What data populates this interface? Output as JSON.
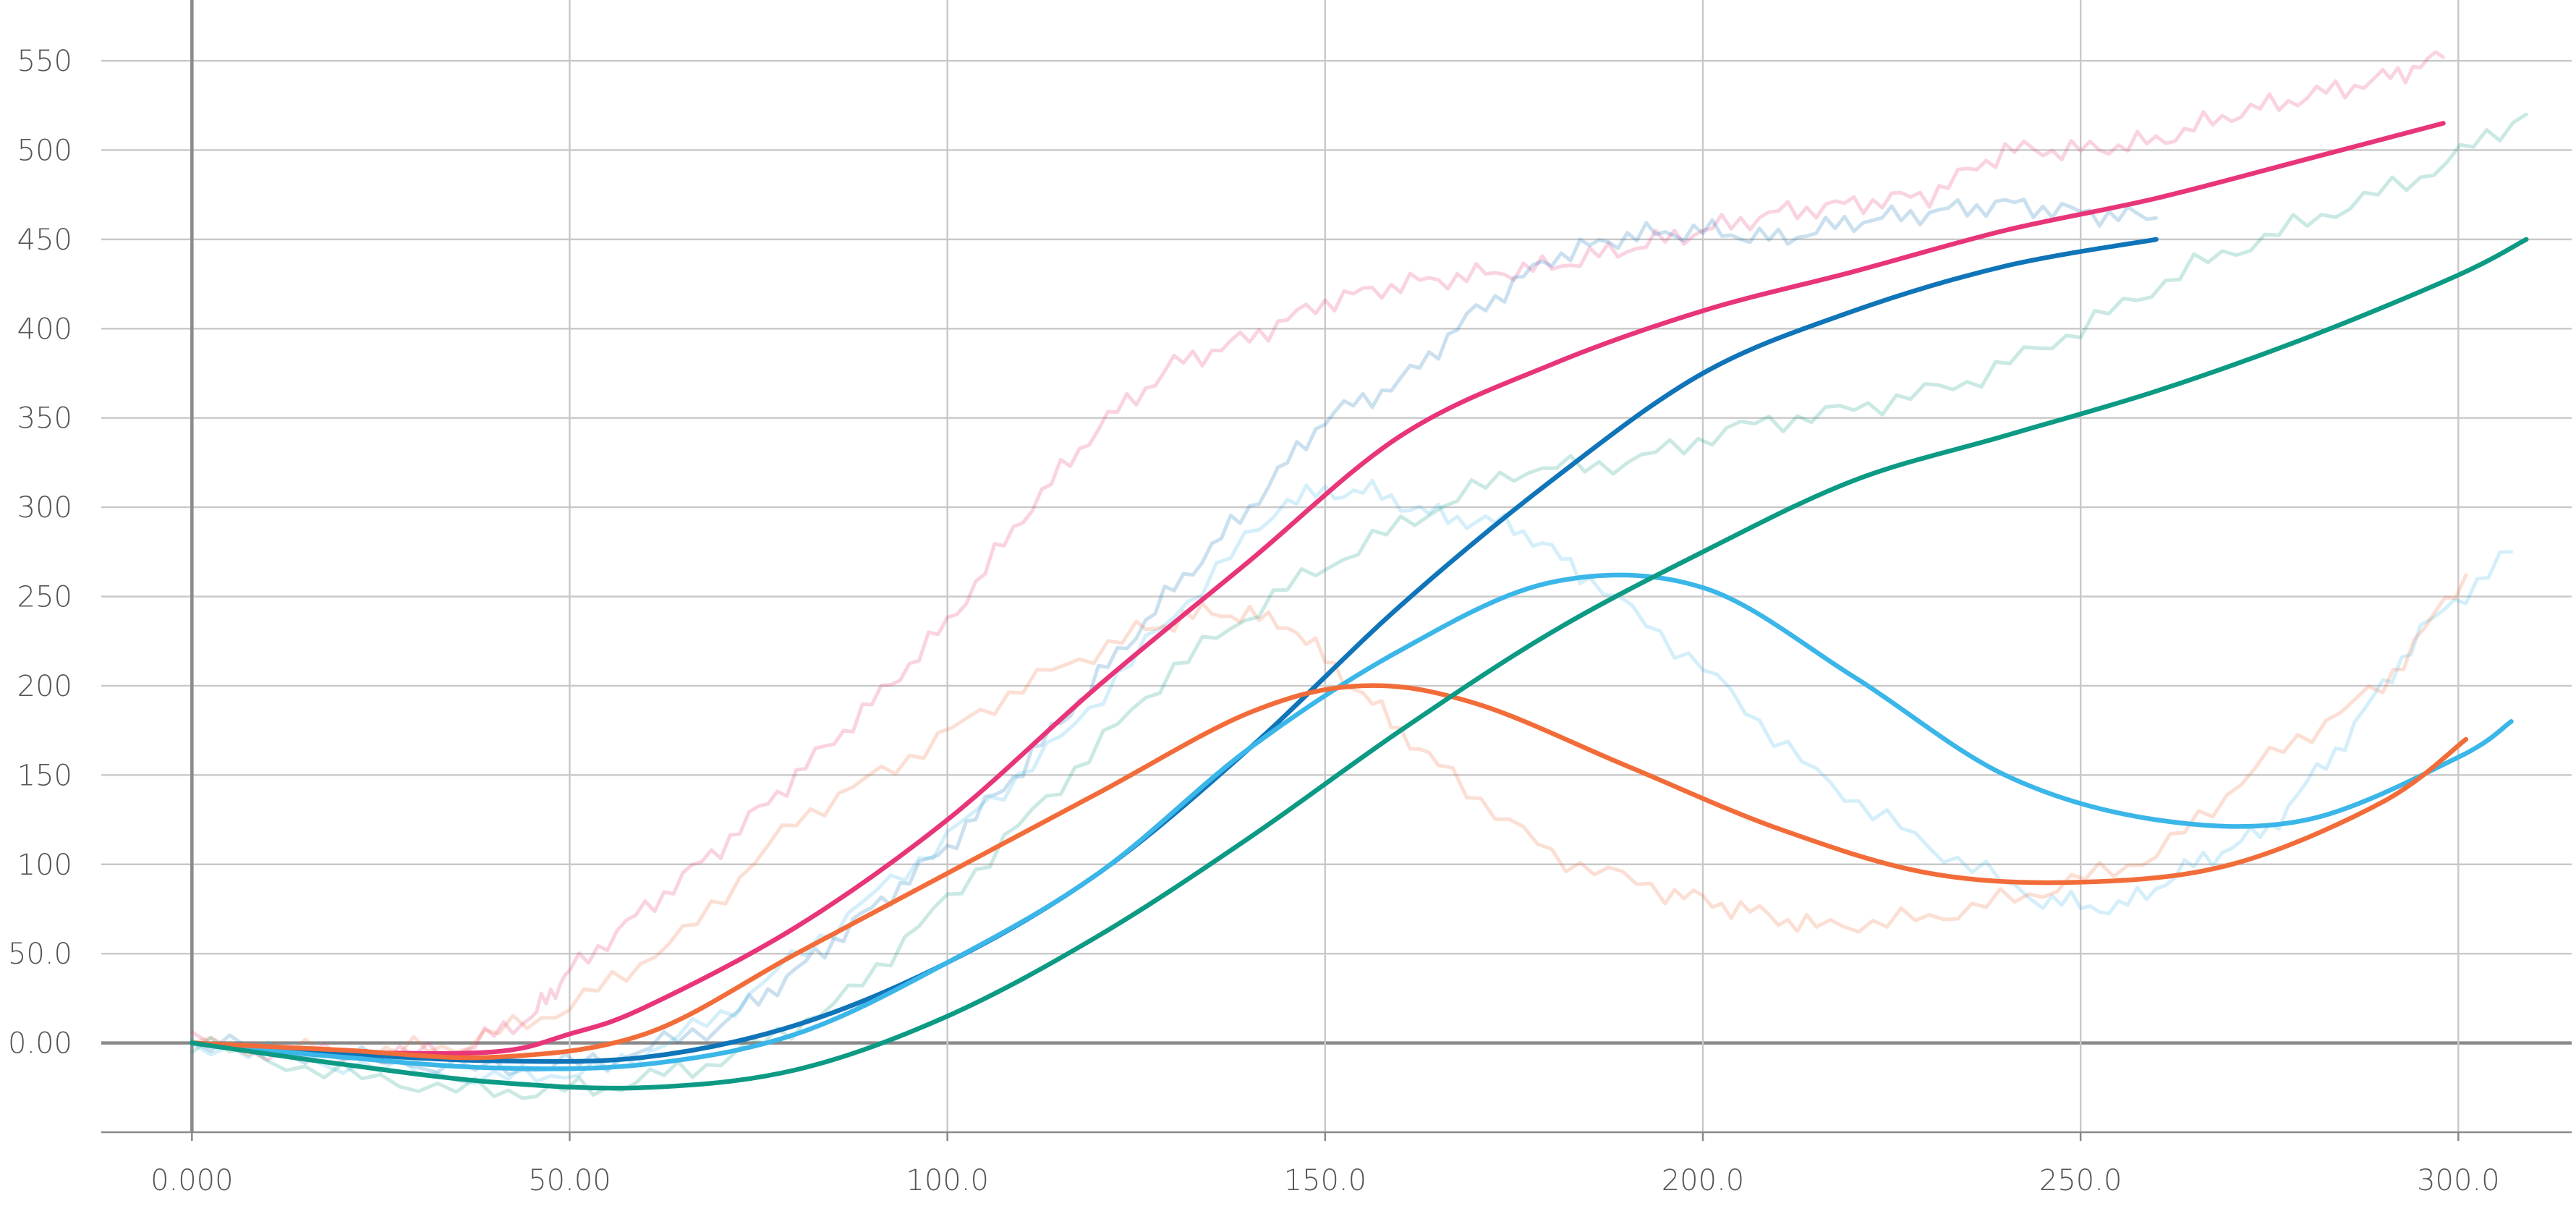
{
  "chart_data": {
    "type": "line",
    "title": "",
    "xlabel": "",
    "ylabel": "",
    "xlim": [
      -12,
      315
    ],
    "ylim": [
      -50,
      580
    ],
    "grid": true,
    "x_ticks": [
      0,
      50,
      100,
      150,
      200,
      250,
      300
    ],
    "x_tick_labels": [
      "0.000",
      "50.00",
      "100.0",
      "150.0",
      "200.0",
      "250.0",
      "300.0"
    ],
    "y_ticks": [
      0,
      50,
      100,
      150,
      200,
      250,
      300,
      350,
      400,
      450,
      500,
      550
    ],
    "y_tick_labels": [
      "0.00",
      "50.0",
      "100",
      "150",
      "200",
      "250",
      "300",
      "350",
      "400",
      "450",
      "500",
      "550"
    ],
    "series": [
      {
        "color": "#e8357a",
        "x": [
          0,
          20,
          40,
          50,
          60,
          80,
          100,
          120,
          140,
          160,
          180,
          200,
          220,
          240,
          260,
          280,
          298
        ],
        "y": [
          0,
          -5,
          -5,
          5,
          20,
          65,
          125,
          200,
          270,
          340,
          380,
          410,
          432,
          455,
          473,
          495,
          515
        ],
        "raw_x": [
          0,
          20,
          35,
          45,
          50,
          60,
          70,
          80,
          90,
          100,
          110,
          120,
          130,
          140,
          150,
          160,
          170,
          180,
          190,
          200,
          210,
          220,
          230,
          240,
          250,
          260,
          270,
          280,
          290,
          298
        ],
        "raw_y": [
          0,
          -8,
          -5,
          15,
          40,
          75,
          110,
          150,
          190,
          235,
          295,
          345,
          380,
          395,
          415,
          425,
          430,
          435,
          445,
          455,
          465,
          470,
          475,
          500,
          500,
          505,
          520,
          530,
          540,
          552
        ]
      },
      {
        "color": "#0f74b8",
        "x": [
          0,
          20,
          40,
          60,
          80,
          100,
          120,
          140,
          160,
          180,
          200,
          220,
          240,
          260
        ],
        "y": [
          0,
          -6,
          -10,
          -8,
          10,
          45,
          95,
          165,
          245,
          315,
          375,
          410,
          435,
          450
        ],
        "raw_x": [
          0,
          20,
          40,
          55,
          70,
          80,
          90,
          100,
          110,
          120,
          130,
          140,
          150,
          160,
          170,
          180,
          190,
          200,
          210,
          220,
          230,
          240,
          250,
          260
        ],
        "raw_y": [
          0,
          -8,
          -15,
          -10,
          10,
          40,
          75,
          110,
          155,
          205,
          255,
          300,
          350,
          370,
          410,
          440,
          452,
          455,
          450,
          460,
          465,
          470,
          465,
          462
        ]
      },
      {
        "color": "#3bb6e8",
        "x": [
          0,
          20,
          40,
          60,
          80,
          100,
          120,
          140,
          160,
          180,
          200,
          220,
          240,
          260,
          280,
          300,
          307
        ],
        "y": [
          0,
          -8,
          -14,
          -12,
          5,
          45,
          95,
          165,
          220,
          258,
          255,
          205,
          150,
          125,
          125,
          160,
          180
        ],
        "raw_x": [
          0,
          20,
          40,
          55,
          70,
          85,
          100,
          115,
          130,
          145,
          155,
          165,
          175,
          185,
          200,
          215,
          230,
          245,
          255,
          265,
          275,
          285,
          295,
          307
        ],
        "raw_y": [
          0,
          -12,
          -20,
          -15,
          15,
          65,
          115,
          170,
          240,
          305,
          310,
          295,
          290,
          260,
          210,
          150,
          110,
          80,
          75,
          100,
          120,
          170,
          230,
          275
        ]
      },
      {
        "color": "#f26c3a",
        "x": [
          0,
          20,
          40,
          60,
          80,
          100,
          120,
          140,
          155,
          170,
          190,
          210,
          230,
          250,
          270,
          290,
          301
        ],
        "y": [
          0,
          -4,
          -8,
          5,
          50,
          95,
          140,
          185,
          200,
          190,
          155,
          120,
          95,
          90,
          100,
          135,
          170
        ],
        "raw_x": [
          0,
          20,
          35,
          50,
          65,
          80,
          95,
          110,
          125,
          135,
          145,
          155,
          165,
          180,
          195,
          205,
          215,
          230,
          245,
          260,
          275,
          290,
          301
        ],
        "raw_y": [
          0,
          -6,
          -2,
          20,
          60,
          125,
          160,
          200,
          230,
          242,
          235,
          195,
          155,
          105,
          85,
          75,
          65,
          70,
          85,
          105,
          160,
          200,
          262
        ]
      },
      {
        "color": "#0c9a84",
        "x": [
          0,
          20,
          40,
          60,
          80,
          100,
          120,
          140,
          160,
          180,
          200,
          220,
          240,
          260,
          280,
          300,
          309
        ],
        "y": [
          0,
          -12,
          -22,
          -25,
          -15,
          15,
          60,
          115,
          175,
          230,
          275,
          315,
          340,
          365,
          395,
          430,
          450
        ],
        "raw_x": [
          0,
          20,
          40,
          55,
          70,
          85,
          100,
          115,
          130,
          145,
          160,
          175,
          190,
          205,
          220,
          235,
          250,
          265,
          280,
          295,
          309
        ],
        "raw_y": [
          0,
          -18,
          -28,
          -25,
          -10,
          20,
          80,
          145,
          210,
          255,
          290,
          320,
          325,
          345,
          355,
          370,
          400,
          435,
          460,
          485,
          520
        ]
      }
    ]
  }
}
